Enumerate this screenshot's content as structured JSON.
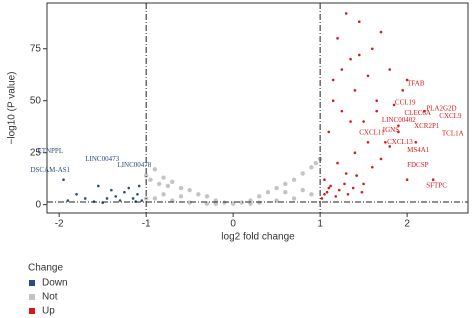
{
  "chart_data": {
    "type": "scatter",
    "xlabel": "log2 fold change",
    "ylabel": "−log10 (P value)",
    "xlim": [
      -2.14,
      2.7
    ],
    "ylim": [
      -4,
      97
    ],
    "xticks": [
      -2,
      -1,
      0,
      1,
      2
    ],
    "yticks": [
      0,
      25,
      50,
      75
    ],
    "thresholds": {
      "x": [
        -1,
        1
      ],
      "y": 1.3
    },
    "legend_title": "Change",
    "series": [
      {
        "name": "Down",
        "color": "#2b4a7d",
        "x": [
          -1.95,
          -1.8,
          -1.7,
          -1.55,
          -1.4,
          -1.35,
          -1.3,
          -1.25,
          -1.2,
          -1.15,
          -1.1,
          -1.08,
          -1.05,
          -1.5,
          -1.9,
          -1.6,
          -1.45,
          -1.12
        ],
        "values": [
          12,
          5,
          3,
          9,
          7,
          4,
          2,
          6,
          8,
          3,
          5,
          9,
          2,
          1,
          2,
          1.5,
          3,
          1.5
        ]
      },
      {
        "name": "Not",
        "color": "#c4c4c4",
        "x": [
          -1.0,
          -0.95,
          -0.9,
          -0.85,
          -0.8,
          -0.75,
          -0.7,
          -0.6,
          -0.5,
          -0.4,
          -0.3,
          -0.2,
          -0.1,
          0,
          0.1,
          0.2,
          0.3,
          0.4,
          0.5,
          0.6,
          0.7,
          0.8,
          0.9,
          0.95,
          1.0,
          -0.9,
          -0.7,
          -0.5,
          -0.3,
          0.3,
          0.5,
          0.7,
          0.9,
          -0.6,
          0.6,
          -0.8,
          0.8,
          -0.2,
          0.2,
          -1.0
        ],
        "values": [
          14,
          12,
          17,
          10,
          13,
          9,
          11,
          8,
          7,
          5,
          4,
          2,
          1,
          0.5,
          1,
          2,
          4,
          6,
          8,
          10,
          12,
          15,
          18,
          20,
          22,
          3,
          2,
          1,
          0.5,
          1,
          2,
          3,
          5,
          4,
          6,
          5,
          7,
          0.5,
          0.5,
          3
        ]
      },
      {
        "name": "Up",
        "color": "#d7191c",
        "x": [
          1.05,
          1.1,
          1.15,
          1.2,
          1.25,
          1.3,
          1.35,
          1.4,
          1.45,
          1.5,
          1.55,
          1.6,
          1.65,
          1.7,
          1.75,
          1.8,
          1.85,
          1.9,
          1.95,
          2.0,
          2.1,
          2.2,
          2.3,
          1.05,
          1.1,
          1.2,
          1.3,
          1.4,
          1.5,
          1.6,
          1.7,
          1.8,
          1.9,
          2.0,
          1.15,
          1.25,
          1.35,
          1.45,
          1.55,
          1.65,
          1.02,
          1.08,
          1.12,
          1.18,
          1.22,
          1.28,
          1.32,
          1.38,
          1.42,
          1.48
        ],
        "values": [
          12,
          35,
          60,
          80,
          45,
          92,
          70,
          55,
          88,
          40,
          62,
          75,
          50,
          83,
          30,
          65,
          48,
          38,
          55,
          60,
          30,
          45,
          12,
          5,
          8,
          20,
          15,
          25,
          10,
          18,
          22,
          28,
          35,
          12,
          50,
          65,
          40,
          72,
          30,
          45,
          3,
          6,
          9,
          4,
          7,
          10,
          5,
          8,
          14,
          6
        ]
      }
    ],
    "annotations": [
      {
        "text": "TFAB",
        "x": 2.0,
        "y": 58,
        "color": "#d7191c"
      },
      {
        "text": "CCL19",
        "x": 1.86,
        "y": 49,
        "color": "#d7191c"
      },
      {
        "text": "PLA2G2D",
        "x": 2.22,
        "y": 46,
        "color": "#d7191c"
      },
      {
        "text": "CLEC6A",
        "x": 1.97,
        "y": 44,
        "color": "#d7191c"
      },
      {
        "text": "CXCL9",
        "x": 2.37,
        "y": 42.5,
        "color": "#d7191c"
      },
      {
        "text": "LINC00402",
        "x": 1.71,
        "y": 40.6,
        "color": "#d7191c"
      },
      {
        "text": "XCR2P1",
        "x": 2.08,
        "y": 37.7,
        "color": "#d7191c"
      },
      {
        "text": "IGNS",
        "x": 1.72,
        "y": 35.7,
        "color": "#d7191c"
      },
      {
        "text": "TCL1A",
        "x": 2.4,
        "y": 34,
        "color": "#d7191c"
      },
      {
        "text": "CXCL11",
        "x": 1.45,
        "y": 34.5,
        "color": "#d7191c"
      },
      {
        "text": "CXCL13",
        "x": 1.77,
        "y": 30,
        "color": "#d7191c"
      },
      {
        "text": "MS4A1",
        "x": 2.0,
        "y": 26,
        "color": "#d7191c"
      },
      {
        "text": "FDCSP",
        "x": 2.0,
        "y": 19,
        "color": "#d7191c"
      },
      {
        "text": "SFTPC",
        "x": 2.22,
        "y": 9,
        "color": "#d7191c"
      },
      {
        "text": "ETNPPL",
        "x": -2.25,
        "y": 25.6,
        "color": "#2b4a7d"
      },
      {
        "text": "LINC00473",
        "x": -1.7,
        "y": 21.7,
        "color": "#2b4a7d"
      },
      {
        "text": "LINC00478",
        "x": -1.33,
        "y": 19,
        "color": "#2b4a7d"
      },
      {
        "text": "DSCAM-AS1",
        "x": -2.33,
        "y": 16.4,
        "color": "#2b4a7d"
      }
    ]
  }
}
